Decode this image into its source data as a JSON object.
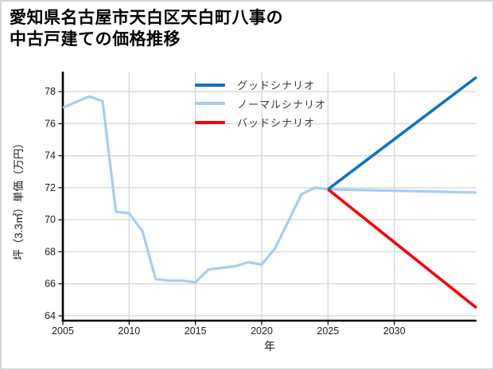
{
  "figure": {
    "title_line1": "愛知県名古屋市天白区天白町八事の",
    "title_line2": "中古戸建ての価格推移"
  },
  "legend": {
    "items": [
      {
        "id": "good",
        "label": "グッドシナリオ",
        "color": "#0f72c4"
      },
      {
        "id": "normal",
        "label": "ノーマルシナリオ",
        "color": "#a6cdf3"
      },
      {
        "id": "bad",
        "label": "バッドシナリオ",
        "color": "#f20506"
      }
    ]
  },
  "chart_data": {
    "type": "line",
    "title": "愛知県名古屋市天白区天白町八事の中古戸建ての価格推移",
    "xlabel": "年",
    "ylabel": "坪（3.3㎡）単価（万円）",
    "xlim": [
      2005,
      2036.2
    ],
    "ylim": [
      63.7,
      79.2
    ],
    "xticks": [
      2005,
      2010,
      2015,
      2020,
      2025,
      2030
    ],
    "yticks": [
      64,
      66,
      68,
      70,
      72,
      74,
      76,
      78
    ],
    "grid": true,
    "legend_position": "upper center",
    "colors": {
      "grid": "#d8d8d8",
      "spine": "#000000",
      "tick_text": "#1a1a1a"
    },
    "series": [
      {
        "id": "normal",
        "name": "ノーマルシナリオ",
        "color": "#a6cdf3",
        "width": 3.2,
        "points": [
          [
            2005,
            77.0
          ],
          [
            2006,
            77.35
          ],
          [
            2007,
            77.7
          ],
          [
            2008,
            77.4
          ],
          [
            2009,
            70.5
          ],
          [
            2010,
            70.4
          ],
          [
            2011,
            69.3
          ],
          [
            2012,
            66.3
          ],
          [
            2013,
            66.2
          ],
          [
            2014,
            66.2
          ],
          [
            2015,
            66.1
          ],
          [
            2016,
            66.9
          ],
          [
            2017,
            67.0
          ],
          [
            2018,
            67.1
          ],
          [
            2019,
            67.35
          ],
          [
            2020,
            67.2
          ],
          [
            2021,
            68.2
          ],
          [
            2022,
            69.9
          ],
          [
            2023,
            71.6
          ],
          [
            2024,
            72.0
          ],
          [
            2025,
            71.9
          ],
          [
            2036.2,
            71.7
          ]
        ]
      },
      {
        "id": "bad",
        "name": "バッドシナリオ",
        "color": "#f20506",
        "width": 3.6,
        "points": [
          [
            2025,
            71.9
          ],
          [
            2036.2,
            64.5
          ]
        ]
      },
      {
        "id": "good",
        "name": "グッドシナリオ",
        "color": "#0f72c4",
        "width": 3.6,
        "points": [
          [
            2025,
            71.9
          ],
          [
            2036.2,
            78.9
          ]
        ]
      }
    ]
  }
}
